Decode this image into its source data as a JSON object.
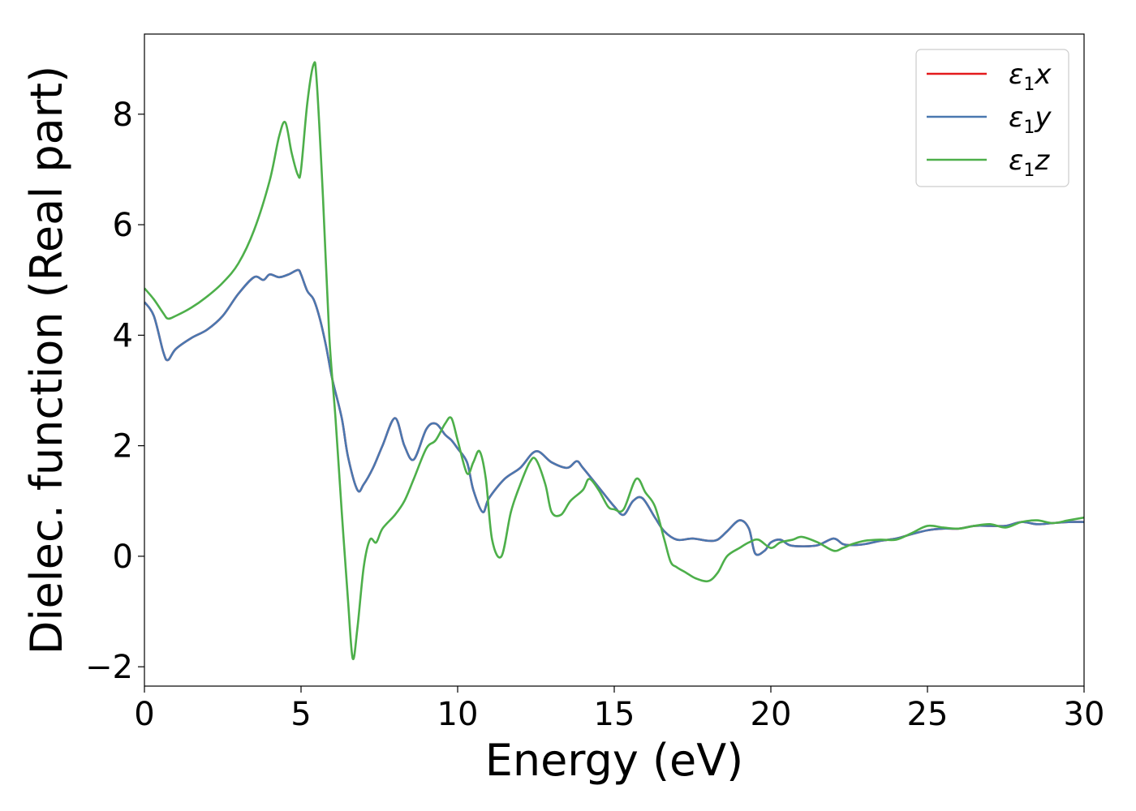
{
  "chart_data": {
    "type": "line",
    "title": "",
    "xlabel": "Energy (eV)",
    "ylabel": "Dielec. function (Real part)",
    "xlim": [
      0,
      30
    ],
    "ylim": [
      -2.35,
      9.45
    ],
    "xticks": [
      0,
      5,
      10,
      15,
      20,
      25,
      30
    ],
    "xtick_labels": [
      "0",
      "5",
      "10",
      "15",
      "20",
      "25",
      "30"
    ],
    "yticks": [
      -2,
      0,
      2,
      4,
      6,
      8
    ],
    "ytick_labels": [
      "−2",
      "0",
      "2",
      "4",
      "6",
      "8"
    ],
    "grid": false,
    "legend_position": "top-right",
    "series": [
      {
        "name": "ε₁x",
        "legend": {
          "main": "ε",
          "sub": "1",
          "axis": "x"
        },
        "color": "#e41a1c",
        "x": [
          0,
          0.3,
          0.6,
          0.75,
          1.0,
          1.5,
          2.0,
          2.5,
          3.0,
          3.5,
          3.8,
          4.0,
          4.3,
          4.6,
          4.9,
          5.0,
          5.2,
          5.4,
          5.6,
          5.8,
          6.0,
          6.3,
          6.5,
          6.8,
          7.0,
          7.3,
          7.6,
          8.0,
          8.3,
          8.6,
          9.0,
          9.3,
          9.6,
          9.8,
          10.0,
          10.3,
          10.5,
          10.8,
          11.0,
          11.5,
          12.0,
          12.5,
          13.0,
          13.5,
          13.8,
          14.0,
          14.5,
          15.0,
          15.3,
          15.6,
          15.9,
          16.3,
          16.6,
          17.0,
          17.5,
          18.0,
          18.3,
          18.6,
          19.0,
          19.3,
          19.5,
          19.8,
          20.0,
          20.3,
          20.6,
          21.0,
          21.5,
          22.0,
          22.3,
          22.6,
          23.0,
          23.5,
          24.0,
          24.5,
          25.0,
          25.5,
          26.0,
          26.5,
          27.0,
          27.5,
          28.0,
          28.5,
          29.0,
          29.5,
          30.0
        ],
        "y": [
          4.6,
          4.35,
          3.7,
          3.55,
          3.75,
          3.95,
          4.1,
          4.35,
          4.75,
          5.05,
          5.0,
          5.1,
          5.05,
          5.1,
          5.18,
          5.1,
          4.8,
          4.65,
          4.3,
          3.8,
          3.2,
          2.5,
          1.8,
          1.2,
          1.3,
          1.6,
          2.0,
          2.5,
          2.0,
          1.75,
          2.3,
          2.4,
          2.2,
          2.1,
          1.95,
          1.7,
          1.2,
          0.8,
          1.05,
          1.4,
          1.6,
          1.9,
          1.7,
          1.6,
          1.72,
          1.6,
          1.25,
          0.9,
          0.75,
          1.0,
          1.05,
          0.7,
          0.45,
          0.3,
          0.32,
          0.28,
          0.3,
          0.45,
          0.65,
          0.5,
          0.05,
          0.1,
          0.25,
          0.3,
          0.2,
          0.18,
          0.2,
          0.32,
          0.22,
          0.2,
          0.22,
          0.28,
          0.32,
          0.4,
          0.47,
          0.5,
          0.5,
          0.55,
          0.55,
          0.55,
          0.62,
          0.58,
          0.6,
          0.62,
          0.62
        ]
      },
      {
        "name": "ε₁y",
        "legend": {
          "main": "ε",
          "sub": "1",
          "axis": "y"
        },
        "color": "#4a78b0",
        "x": [
          0,
          0.3,
          0.6,
          0.75,
          1.0,
          1.5,
          2.0,
          2.5,
          3.0,
          3.5,
          3.8,
          4.0,
          4.3,
          4.6,
          4.9,
          5.0,
          5.2,
          5.4,
          5.6,
          5.8,
          6.0,
          6.3,
          6.5,
          6.8,
          7.0,
          7.3,
          7.6,
          8.0,
          8.3,
          8.6,
          9.0,
          9.3,
          9.6,
          9.8,
          10.0,
          10.3,
          10.5,
          10.8,
          11.0,
          11.5,
          12.0,
          12.5,
          13.0,
          13.5,
          13.8,
          14.0,
          14.5,
          15.0,
          15.3,
          15.6,
          15.9,
          16.3,
          16.6,
          17.0,
          17.5,
          18.0,
          18.3,
          18.6,
          19.0,
          19.3,
          19.5,
          19.8,
          20.0,
          20.3,
          20.6,
          21.0,
          21.5,
          22.0,
          22.3,
          22.6,
          23.0,
          23.5,
          24.0,
          24.5,
          25.0,
          25.5,
          26.0,
          26.5,
          27.0,
          27.5,
          28.0,
          28.5,
          29.0,
          29.5,
          30.0
        ],
        "y": [
          4.6,
          4.35,
          3.7,
          3.55,
          3.75,
          3.95,
          4.1,
          4.35,
          4.75,
          5.05,
          5.0,
          5.1,
          5.05,
          5.1,
          5.18,
          5.1,
          4.8,
          4.65,
          4.3,
          3.8,
          3.2,
          2.5,
          1.8,
          1.2,
          1.3,
          1.6,
          2.0,
          2.5,
          2.0,
          1.75,
          2.3,
          2.4,
          2.2,
          2.1,
          1.95,
          1.7,
          1.2,
          0.8,
          1.05,
          1.4,
          1.6,
          1.9,
          1.7,
          1.6,
          1.72,
          1.6,
          1.25,
          0.9,
          0.75,
          1.0,
          1.05,
          0.7,
          0.45,
          0.3,
          0.32,
          0.28,
          0.3,
          0.45,
          0.65,
          0.5,
          0.05,
          0.1,
          0.25,
          0.3,
          0.2,
          0.18,
          0.2,
          0.32,
          0.22,
          0.2,
          0.22,
          0.28,
          0.32,
          0.4,
          0.47,
          0.5,
          0.5,
          0.55,
          0.55,
          0.55,
          0.62,
          0.58,
          0.6,
          0.62,
          0.62
        ]
      },
      {
        "name": "ε₁z",
        "legend": {
          "main": "ε",
          "sub": "1",
          "axis": "z"
        },
        "color": "#4daf4a",
        "x": [
          0,
          0.3,
          0.6,
          0.75,
          1.0,
          1.5,
          2.0,
          2.5,
          3.0,
          3.5,
          4.0,
          4.3,
          4.5,
          4.7,
          4.9,
          5.0,
          5.2,
          5.4,
          5.5,
          5.7,
          5.9,
          6.1,
          6.3,
          6.5,
          6.65,
          6.8,
          7.0,
          7.2,
          7.4,
          7.6,
          8.0,
          8.3,
          8.6,
          9.0,
          9.3,
          9.6,
          9.8,
          10.0,
          10.3,
          10.5,
          10.7,
          10.9,
          11.1,
          11.4,
          11.7,
          12.0,
          12.3,
          12.5,
          12.8,
          13.0,
          13.3,
          13.6,
          14.0,
          14.2,
          14.5,
          14.8,
          15.0,
          15.3,
          15.7,
          16.0,
          16.3,
          16.6,
          16.8,
          17.0,
          17.3,
          17.6,
          18.0,
          18.3,
          18.6,
          19.0,
          19.3,
          19.6,
          20.0,
          20.3,
          20.7,
          21.0,
          21.5,
          22.0,
          22.3,
          22.6,
          23.0,
          23.5,
          24.0,
          24.5,
          25.0,
          25.5,
          26.0,
          26.5,
          27.0,
          27.5,
          28.0,
          28.5,
          29.0,
          29.5,
          30.0
        ],
        "y": [
          4.85,
          4.65,
          4.4,
          4.3,
          4.35,
          4.5,
          4.7,
          4.95,
          5.3,
          5.9,
          6.8,
          7.6,
          7.85,
          7.3,
          6.9,
          7.0,
          8.2,
          8.9,
          8.6,
          6.5,
          4.0,
          2.5,
          0.8,
          -0.8,
          -1.85,
          -1.3,
          -0.2,
          0.3,
          0.25,
          0.5,
          0.75,
          1.0,
          1.4,
          1.95,
          2.1,
          2.4,
          2.5,
          2.1,
          1.5,
          1.7,
          1.9,
          1.4,
          0.3,
          0.0,
          0.8,
          1.3,
          1.7,
          1.75,
          1.3,
          0.8,
          0.75,
          1.0,
          1.2,
          1.4,
          1.2,
          0.9,
          0.85,
          0.85,
          1.4,
          1.15,
          0.9,
          0.3,
          -0.1,
          -0.2,
          -0.3,
          -0.4,
          -0.45,
          -0.3,
          0.0,
          0.15,
          0.25,
          0.3,
          0.15,
          0.25,
          0.3,
          0.35,
          0.25,
          0.1,
          0.15,
          0.22,
          0.28,
          0.3,
          0.3,
          0.42,
          0.55,
          0.52,
          0.5,
          0.55,
          0.58,
          0.52,
          0.62,
          0.65,
          0.6,
          0.65,
          0.7
        ]
      }
    ]
  }
}
